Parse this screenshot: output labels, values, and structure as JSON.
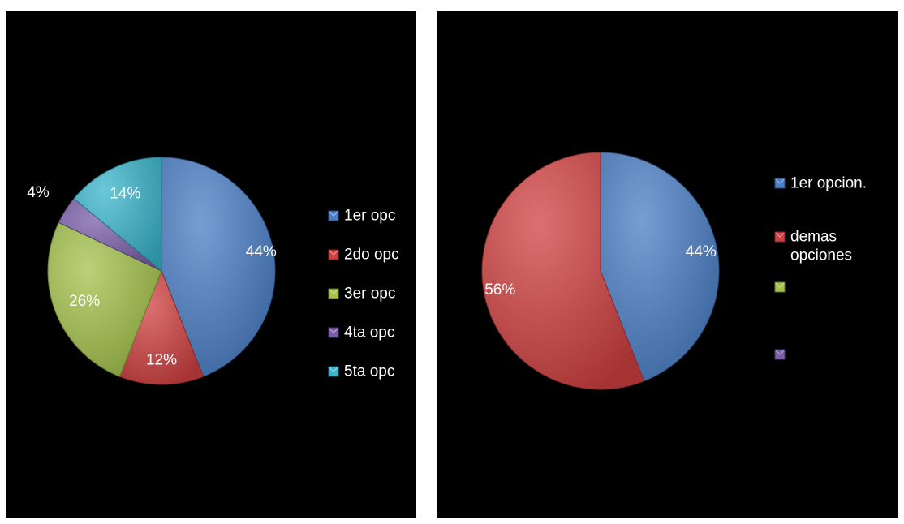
{
  "chart_data": [
    {
      "type": "pie",
      "categories": [
        "1er opc",
        "2do opc",
        "3er opc",
        "4ta opc",
        "5ta opc"
      ],
      "values": [
        44,
        12,
        26,
        4,
        14
      ],
      "data_labels": [
        "44%",
        "12%",
        "26%",
        "4%",
        "14%"
      ],
      "colors": [
        "#4a7ec6",
        "#d04040",
        "#a3c14a",
        "#7b5ea9",
        "#3ab5cc"
      ],
      "label_colors": [
        "#ffffff",
        "#ffffff",
        "#ffffff",
        "#ffffff",
        "#ffffff"
      ],
      "legend_position": "right",
      "title": ""
    },
    {
      "type": "pie",
      "categories": [
        "1er opcion.",
        "demas opciones"
      ],
      "legend_lines": [
        [
          "1er opcion."
        ],
        [
          "demas",
          "opciones"
        ],
        [
          ""
        ],
        [
          ""
        ]
      ],
      "legend_colors": [
        "#4a7ec6",
        "#d04040",
        "#a3c14a",
        "#7b5ea9"
      ],
      "values": [
        44,
        56
      ],
      "data_labels": [
        "44%",
        "56%"
      ],
      "colors": [
        "#4a7ec6",
        "#d04040"
      ],
      "legend_position": "right",
      "title": ""
    }
  ]
}
